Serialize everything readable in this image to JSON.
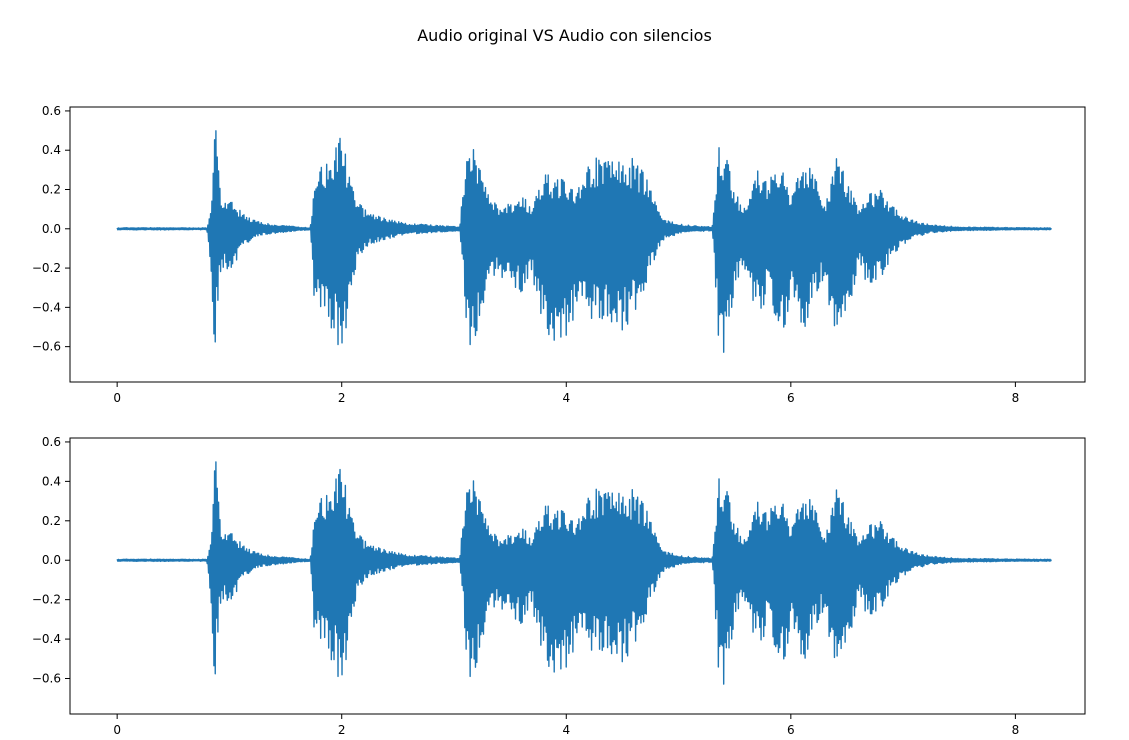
{
  "figure": {
    "title": "Audio original VS Audio con silencios"
  },
  "colors": {
    "waveform": "#1f77b4",
    "axes": "#000000",
    "background": "#ffffff"
  },
  "chart_data": [
    {
      "type": "line",
      "title": "",
      "xlabel": "",
      "ylabel": "",
      "xlim": [
        -0.42,
        8.62
      ],
      "ylim": [
        -0.78,
        0.62
      ],
      "xticks": [
        0,
        2,
        4,
        6,
        8
      ],
      "xtick_labels": [
        "0",
        "2",
        "4",
        "6",
        "8"
      ],
      "yticks": [
        0.6,
        0.4,
        0.2,
        0.0,
        -0.2,
        -0.4,
        -0.6
      ],
      "ytick_labels": [
        "0.6",
        "0.4",
        "0.2",
        "0.0",
        "−0.2",
        "−0.4",
        "−0.6"
      ],
      "grid": false,
      "series": [
        {
          "x": [
            0.0,
            0.3,
            0.6,
            0.8,
            0.84,
            0.86,
            0.88,
            0.9,
            0.92,
            0.95,
            1.0,
            1.05,
            1.1,
            1.15,
            1.2,
            1.3,
            1.45,
            1.6,
            1.72,
            1.76,
            1.8,
            1.85,
            1.9,
            1.95,
            2.0,
            2.05,
            2.1,
            2.2,
            2.35,
            2.55,
            2.8,
            3.05,
            3.12,
            3.15,
            3.2,
            3.25,
            3.3,
            3.4,
            3.5,
            3.6,
            3.7,
            3.8,
            3.9,
            4.0,
            4.1,
            4.2,
            4.3,
            4.4,
            4.5,
            4.6,
            4.7,
            4.85,
            5.05,
            5.3,
            5.36,
            5.4,
            5.45,
            5.5,
            5.6,
            5.7,
            5.8,
            5.9,
            6.0,
            6.1,
            6.2,
            6.3,
            6.4,
            6.5,
            6.6,
            6.7,
            6.8,
            6.9,
            7.0,
            7.1,
            7.25,
            7.5,
            8.0,
            8.32
          ],
          "upper": [
            0.005,
            0.006,
            0.005,
            0.005,
            0.12,
            0.56,
            0.54,
            0.45,
            0.2,
            0.14,
            0.15,
            0.12,
            0.1,
            0.06,
            0.05,
            0.03,
            0.02,
            0.01,
            0.005,
            0.28,
            0.33,
            0.32,
            0.36,
            0.45,
            0.47,
            0.35,
            0.2,
            0.1,
            0.06,
            0.03,
            0.02,
            0.01,
            0.45,
            0.47,
            0.4,
            0.3,
            0.2,
            0.1,
            0.13,
            0.17,
            0.12,
            0.3,
            0.26,
            0.25,
            0.2,
            0.34,
            0.37,
            0.35,
            0.37,
            0.36,
            0.28,
            0.05,
            0.02,
            0.01,
            0.43,
            0.41,
            0.32,
            0.18,
            0.12,
            0.34,
            0.23,
            0.37,
            0.16,
            0.36,
            0.32,
            0.12,
            0.38,
            0.26,
            0.12,
            0.18,
            0.2,
            0.13,
            0.07,
            0.04,
            0.02,
            0.01,
            0.006,
            0.005
          ],
          "lower": [
            -0.005,
            -0.006,
            -0.005,
            -0.005,
            -0.3,
            -0.62,
            -0.58,
            -0.4,
            -0.22,
            -0.2,
            -0.22,
            -0.2,
            -0.1,
            -0.08,
            -0.05,
            -0.03,
            -0.02,
            -0.01,
            -0.005,
            -0.42,
            -0.45,
            -0.42,
            -0.5,
            -0.6,
            -0.72,
            -0.5,
            -0.25,
            -0.1,
            -0.06,
            -0.03,
            -0.02,
            -0.01,
            -0.55,
            -0.68,
            -0.55,
            -0.45,
            -0.3,
            -0.25,
            -0.28,
            -0.35,
            -0.25,
            -0.5,
            -0.6,
            -0.55,
            -0.45,
            -0.5,
            -0.5,
            -0.48,
            -0.55,
            -0.45,
            -0.3,
            -0.06,
            -0.02,
            -0.01,
            -0.62,
            -0.7,
            -0.55,
            -0.3,
            -0.22,
            -0.45,
            -0.35,
            -0.62,
            -0.35,
            -0.55,
            -0.4,
            -0.25,
            -0.68,
            -0.45,
            -0.2,
            -0.3,
            -0.25,
            -0.15,
            -0.08,
            -0.05,
            -0.02,
            -0.01,
            -0.006,
            -0.005
          ]
        }
      ]
    },
    {
      "type": "line",
      "title": "",
      "xlabel": "",
      "ylabel": "",
      "xlim": [
        -0.42,
        8.62
      ],
      "ylim": [
        -0.78,
        0.62
      ],
      "xticks": [
        0,
        2,
        4,
        6,
        8
      ],
      "xtick_labels": [
        "0",
        "2",
        "4",
        "6",
        "8"
      ],
      "yticks": [
        0.6,
        0.4,
        0.2,
        0.0,
        -0.2,
        -0.4,
        -0.6
      ],
      "ytick_labels": [
        "0.6",
        "0.4",
        "0.2",
        "0.0",
        "−0.2",
        "−0.4",
        "−0.6"
      ],
      "grid": false,
      "series": [
        {
          "x": [
            0.0,
            0.3,
            0.6,
            0.8,
            0.84,
            0.86,
            0.88,
            0.9,
            0.92,
            0.95,
            1.0,
            1.05,
            1.1,
            1.15,
            1.2,
            1.3,
            1.45,
            1.6,
            1.72,
            1.76,
            1.8,
            1.85,
            1.9,
            1.95,
            2.0,
            2.05,
            2.1,
            2.2,
            2.35,
            2.55,
            2.8,
            3.05,
            3.12,
            3.15,
            3.2,
            3.25,
            3.3,
            3.4,
            3.5,
            3.6,
            3.7,
            3.8,
            3.9,
            4.0,
            4.1,
            4.2,
            4.3,
            4.4,
            4.5,
            4.6,
            4.7,
            4.85,
            5.05,
            5.3,
            5.36,
            5.4,
            5.45,
            5.5,
            5.6,
            5.7,
            5.8,
            5.9,
            6.0,
            6.1,
            6.2,
            6.3,
            6.4,
            6.5,
            6.6,
            6.7,
            6.8,
            6.9,
            7.0,
            7.1,
            7.25,
            7.5,
            8.0,
            8.32
          ],
          "upper": [
            0.005,
            0.006,
            0.005,
            0.005,
            0.12,
            0.56,
            0.54,
            0.45,
            0.2,
            0.14,
            0.15,
            0.12,
            0.1,
            0.06,
            0.05,
            0.03,
            0.02,
            0.01,
            0.005,
            0.28,
            0.33,
            0.32,
            0.36,
            0.45,
            0.47,
            0.35,
            0.2,
            0.1,
            0.06,
            0.03,
            0.02,
            0.01,
            0.45,
            0.47,
            0.4,
            0.3,
            0.2,
            0.1,
            0.13,
            0.17,
            0.12,
            0.3,
            0.26,
            0.25,
            0.2,
            0.34,
            0.37,
            0.35,
            0.37,
            0.36,
            0.28,
            0.05,
            0.02,
            0.01,
            0.43,
            0.41,
            0.32,
            0.18,
            0.12,
            0.34,
            0.23,
            0.37,
            0.16,
            0.36,
            0.32,
            0.12,
            0.38,
            0.26,
            0.12,
            0.18,
            0.2,
            0.13,
            0.07,
            0.04,
            0.02,
            0.01,
            0.006,
            0.005
          ],
          "lower": [
            -0.005,
            -0.006,
            -0.005,
            -0.005,
            -0.3,
            -0.62,
            -0.58,
            -0.4,
            -0.22,
            -0.2,
            -0.22,
            -0.2,
            -0.1,
            -0.08,
            -0.05,
            -0.03,
            -0.02,
            -0.01,
            -0.005,
            -0.42,
            -0.45,
            -0.42,
            -0.5,
            -0.6,
            -0.72,
            -0.5,
            -0.25,
            -0.1,
            -0.06,
            -0.03,
            -0.02,
            -0.01,
            -0.55,
            -0.68,
            -0.55,
            -0.45,
            -0.3,
            -0.25,
            -0.28,
            -0.35,
            -0.25,
            -0.5,
            -0.6,
            -0.55,
            -0.45,
            -0.5,
            -0.5,
            -0.48,
            -0.55,
            -0.45,
            -0.3,
            -0.06,
            -0.02,
            -0.01,
            -0.62,
            -0.7,
            -0.55,
            -0.3,
            -0.22,
            -0.45,
            -0.35,
            -0.62,
            -0.35,
            -0.55,
            -0.4,
            -0.25,
            -0.68,
            -0.45,
            -0.2,
            -0.3,
            -0.25,
            -0.15,
            -0.08,
            -0.05,
            -0.02,
            -0.01,
            -0.006,
            -0.005
          ]
        }
      ]
    }
  ]
}
